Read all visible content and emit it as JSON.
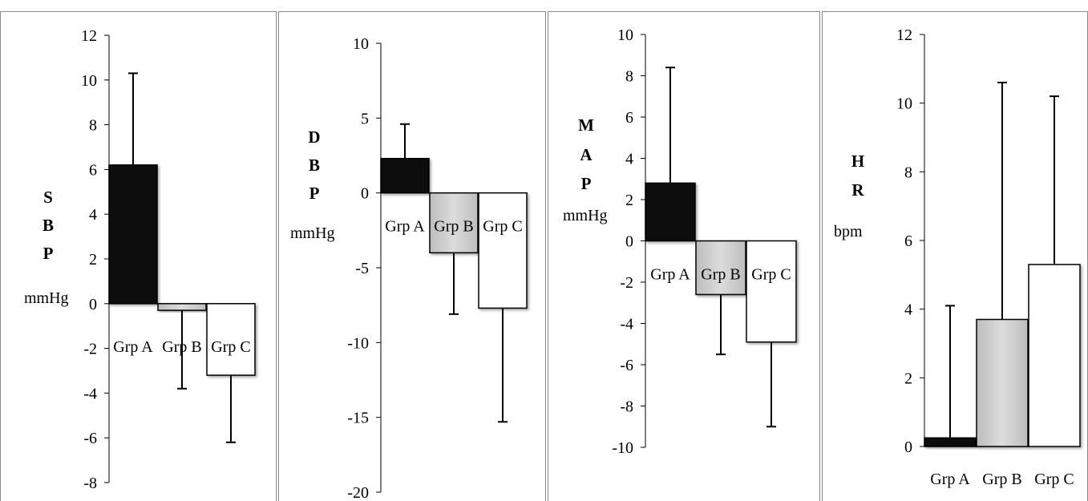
{
  "chart_data": [
    {
      "type": "bar",
      "categories": [
        "Grp A",
        "Grp B",
        "Grp C"
      ],
      "values": [
        6.2,
        -0.3,
        -3.2
      ],
      "error_bars": [
        4.1,
        3.5,
        3.0
      ],
      "ylabel_letters": [
        "S",
        "B",
        "P"
      ],
      "ylabel_unit": "mmHg",
      "ylim": [
        -8,
        12
      ],
      "yticks": [
        12,
        10,
        8,
        6,
        4,
        2,
        0,
        -2,
        -4,
        -6,
        -8
      ]
    },
    {
      "type": "bar",
      "categories": [
        "Grp A",
        "Grp B",
        "Grp C"
      ],
      "values": [
        2.3,
        -4.0,
        -7.7
      ],
      "error_bars": [
        2.3,
        4.1,
        7.6
      ],
      "ylabel_letters": [
        "D",
        "B",
        "P"
      ],
      "ylabel_unit": "mmHg",
      "ylim": [
        -20,
        10
      ],
      "yticks": [
        10,
        5,
        0,
        -5,
        -10,
        -15,
        -20
      ]
    },
    {
      "type": "bar",
      "categories": [
        "Grp A",
        "Grp B",
        "Grp C"
      ],
      "values": [
        2.8,
        -2.6,
        -4.9
      ],
      "error_bars": [
        5.6,
        2.9,
        4.1
      ],
      "ylabel_letters": [
        "M",
        "A",
        "P"
      ],
      "ylabel_unit": "mmHg",
      "ylim": [
        -10,
        10
      ],
      "yticks": [
        10,
        8,
        6,
        4,
        2,
        0,
        -2,
        -4,
        -6,
        -8,
        -10
      ]
    },
    {
      "type": "bar",
      "categories": [
        "Grp A",
        "Grp B",
        "Grp C"
      ],
      "values": [
        0.25,
        3.7,
        5.3
      ],
      "error_bars": [
        3.85,
        6.9,
        4.9
      ],
      "ylabel_letters": [
        "H",
        "R"
      ],
      "ylabel_unit": "bpm",
      "ylim": [
        0,
        12
      ],
      "yticks": [
        12,
        10,
        8,
        6,
        4,
        2,
        0
      ]
    }
  ],
  "colors": {
    "grp_a": "#0d0d0d",
    "grp_b": "#c8c8c8",
    "grp_c": "#ffffff",
    "outline": "#000000",
    "panel_border": "#8a8a8a"
  }
}
